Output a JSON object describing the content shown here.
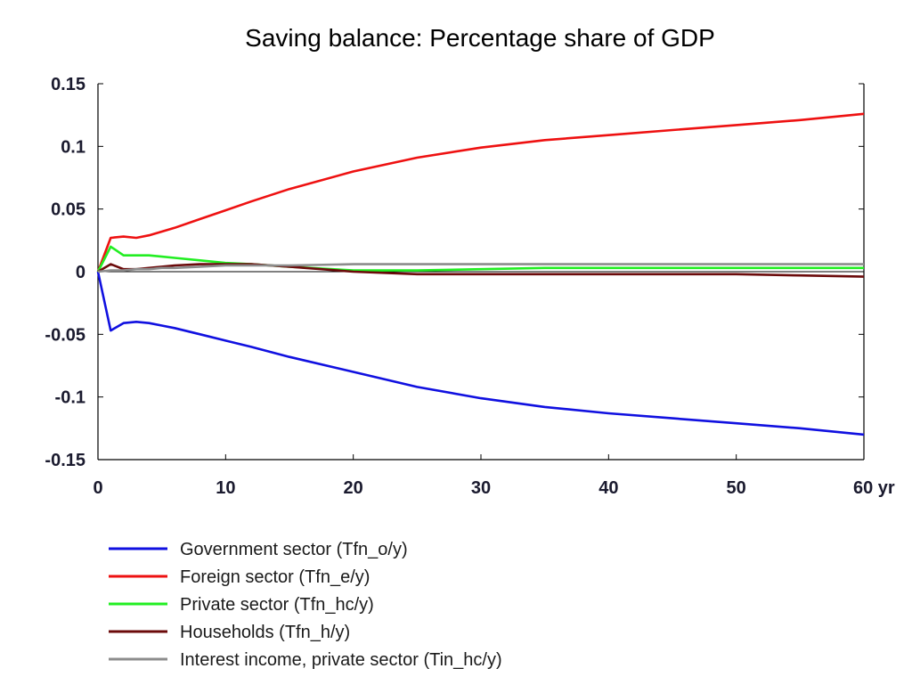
{
  "chart_data": {
    "type": "line",
    "title": "Saving balance: Percentage share of GDP",
    "xlabel": "",
    "ylabel": "",
    "x_unit": "yr",
    "xlim": [
      0,
      60
    ],
    "ylim": [
      -0.15,
      0.15
    ],
    "xticks": [
      0,
      10,
      20,
      30,
      40,
      50,
      60
    ],
    "xtick_labels": [
      "0",
      "10",
      "20",
      "30",
      "40",
      "50",
      "60 yr"
    ],
    "yticks": [
      0.15,
      0.1,
      0.05,
      0,
      -0.05,
      -0.1,
      -0.15
    ],
    "ytick_labels": [
      "0.15",
      "0.1",
      "0.05",
      "0",
      "-0.05",
      "-0.1",
      "-0.15"
    ],
    "grid": false,
    "legend_position": "bottom",
    "series": [
      {
        "name": "Government sector (Tfn_o/y)",
        "color": "#1010e0",
        "x": [
          0,
          1,
          2,
          3,
          4,
          5,
          6,
          8,
          10,
          12,
          15,
          20,
          25,
          30,
          35,
          40,
          45,
          50,
          55,
          60
        ],
        "y": [
          0,
          -0.047,
          -0.041,
          -0.04,
          -0.041,
          -0.043,
          -0.045,
          -0.05,
          -0.055,
          -0.06,
          -0.068,
          -0.08,
          -0.092,
          -0.101,
          -0.108,
          -0.113,
          -0.117,
          -0.121,
          -0.125,
          -0.13
        ]
      },
      {
        "name": "Foreign sector (Tfn_e/y)",
        "color": "#ee1111",
        "x": [
          0,
          1,
          2,
          3,
          4,
          5,
          6,
          8,
          10,
          12,
          15,
          20,
          25,
          30,
          35,
          40,
          45,
          50,
          55,
          60
        ],
        "y": [
          0,
          0.027,
          0.028,
          0.027,
          0.029,
          0.032,
          0.035,
          0.042,
          0.049,
          0.056,
          0.066,
          0.08,
          0.091,
          0.099,
          0.105,
          0.109,
          0.113,
          0.117,
          0.121,
          0.126
        ]
      },
      {
        "name": "Private sector (Tfn_hc/y)",
        "color": "#22ee22",
        "x": [
          0,
          1,
          2,
          3,
          4,
          5,
          6,
          8,
          10,
          12,
          15,
          20,
          25,
          30,
          35,
          40,
          45,
          50,
          55,
          60
        ],
        "y": [
          0,
          0.02,
          0.013,
          0.013,
          0.013,
          0.012,
          0.011,
          0.009,
          0.007,
          0.006,
          0.004,
          0.001,
          0.001,
          0.002,
          0.003,
          0.003,
          0.003,
          0.003,
          0.003,
          0.003
        ]
      },
      {
        "name": "Households (Tfn_h/y)",
        "color": "#6b0a0a",
        "x": [
          0,
          1,
          2,
          3,
          4,
          5,
          6,
          8,
          10,
          12,
          15,
          20,
          25,
          30,
          35,
          40,
          45,
          50,
          55,
          60
        ],
        "y": [
          0,
          0.006,
          0.002,
          0.002,
          0.003,
          0.004,
          0.005,
          0.006,
          0.006,
          0.006,
          0.004,
          0.0,
          -0.002,
          -0.002,
          -0.002,
          -0.002,
          -0.002,
          -0.002,
          -0.003,
          -0.004
        ]
      },
      {
        "name": "Interest income, private sector (Tin_hc/y)",
        "color": "#8c8c8c",
        "x": [
          0,
          1,
          2,
          3,
          4,
          5,
          6,
          8,
          10,
          12,
          15,
          20,
          25,
          30,
          35,
          40,
          45,
          50,
          55,
          60
        ],
        "y": [
          0,
          0.001,
          0.001,
          0.002,
          0.002,
          0.003,
          0.003,
          0.004,
          0.005,
          0.005,
          0.005,
          0.006,
          0.006,
          0.006,
          0.006,
          0.006,
          0.006,
          0.006,
          0.006,
          0.006
        ]
      }
    ]
  }
}
